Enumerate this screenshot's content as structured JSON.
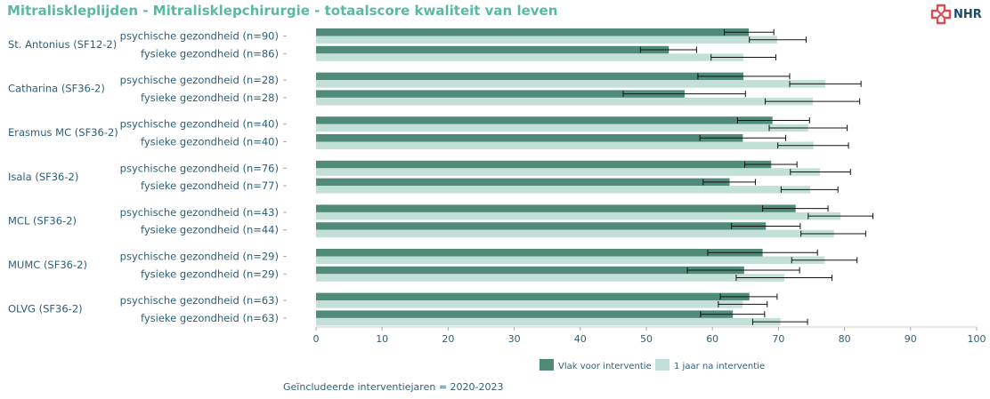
{
  "chart_data": {
    "type": "bar",
    "orientation": "horizontal",
    "title": "Mitraliskleplijden - Mitralisklepchirurgie - totaalscore kwaliteit van leven",
    "xlim": [
      0,
      100
    ],
    "xticks": [
      0,
      10,
      20,
      30,
      40,
      50,
      60,
      70,
      80,
      90,
      100
    ],
    "groups": [
      {
        "label": "St. Antonius (SF12-2)",
        "rows": [
          {
            "label": "psychische gezondheid (n=90)",
            "before": 65.5,
            "before_ci": [
              61.8,
              69.3
            ],
            "after": 69.8,
            "after_ci": [
              65.6,
              74.2
            ]
          },
          {
            "label": "fysieke gezondheid (n=86)",
            "before": 53.4,
            "before_ci": [
              49.1,
              57.6
            ],
            "after": 64.7,
            "after_ci": [
              59.8,
              69.6
            ]
          }
        ]
      },
      {
        "label": "Catharina (SF36-2)",
        "rows": [
          {
            "label": "psychische gezondheid (n=28)",
            "before": 64.7,
            "before_ci": [
              57.8,
              71.7
            ],
            "after": 77.1,
            "after_ci": [
              71.7,
              82.5
            ]
          },
          {
            "label": "fysieke gezondheid (n=28)",
            "before": 55.8,
            "before_ci": [
              46.5,
              65.0
            ],
            "after": 75.2,
            "after_ci": [
              68.0,
              82.3
            ]
          }
        ]
      },
      {
        "label": "Erasmus MC (SF36-2)",
        "rows": [
          {
            "label": "psychische gezondheid (n=40)",
            "before": 69.1,
            "before_ci": [
              63.8,
              74.7
            ],
            "after": 74.5,
            "after_ci": [
              68.6,
              80.4
            ]
          },
          {
            "label": "fysieke gezondheid (n=40)",
            "before": 64.6,
            "before_ci": [
              58.1,
              71.1
            ],
            "after": 75.3,
            "after_ci": [
              69.9,
              80.6
            ]
          }
        ]
      },
      {
        "label": "Isala (SF36-2)",
        "rows": [
          {
            "label": "psychische gezondheid (n=76)",
            "before": 68.9,
            "before_ci": [
              64.9,
              72.8
            ],
            "after": 76.3,
            "after_ci": [
              71.8,
              80.9
            ]
          },
          {
            "label": "fysieke gezondheid (n=77)",
            "before": 62.6,
            "before_ci": [
              58.6,
              66.5
            ],
            "after": 74.8,
            "after_ci": [
              70.4,
              79.0
            ]
          }
        ]
      },
      {
        "label": "MCL (SF36-2)",
        "rows": [
          {
            "label": "psychische gezondheid (n=43)",
            "before": 72.6,
            "before_ci": [
              67.6,
              77.5
            ],
            "after": 79.4,
            "after_ci": [
              74.5,
              84.3
            ]
          },
          {
            "label": "fysieke gezondheid (n=44)",
            "before": 68.1,
            "before_ci": [
              62.9,
              73.3
            ],
            "after": 78.4,
            "after_ci": [
              73.4,
              83.2
            ]
          }
        ]
      },
      {
        "label": "MUMC (SF36-2)",
        "rows": [
          {
            "label": "psychische gezondheid (n=29)",
            "before": 67.6,
            "before_ci": [
              59.3,
              75.9
            ],
            "after": 77.0,
            "after_ci": [
              72.0,
              81.9
            ]
          },
          {
            "label": "fysieke gezondheid (n=29)",
            "before": 64.8,
            "before_ci": [
              56.2,
              73.2
            ],
            "after": 70.9,
            "after_ci": [
              63.6,
              78.1
            ]
          }
        ]
      },
      {
        "label": "OLVG (SF36-2)",
        "rows": [
          {
            "label": "psychische gezondheid (n=63)",
            "before": 65.6,
            "before_ci": [
              61.2,
              69.8
            ],
            "after": 64.6,
            "after_ci": [
              60.9,
              68.3
            ]
          },
          {
            "label": "fysieke gezondheid (n=63)",
            "before": 63.1,
            "before_ci": [
              58.2,
              67.9
            ],
            "after": 70.3,
            "after_ci": [
              66.1,
              74.4
            ]
          }
        ]
      }
    ],
    "series": [
      {
        "key": "before",
        "name": "Vlak voor interventie",
        "color": "#508a78"
      },
      {
        "key": "after",
        "name": "1 jaar na interventie",
        "color": "#c2e0d7"
      }
    ],
    "legend_position": "bottom-center",
    "grid": false
  },
  "logo": {
    "text": "NHR",
    "icon": "nhr-cross-icon",
    "color": "#d64f55"
  },
  "footer_text": "Geïncludeerde interventiejaren = 2020-2023",
  "colors": {
    "title": "#5bb8a2",
    "label": "#2e5f75",
    "axis": "#cccccc"
  }
}
